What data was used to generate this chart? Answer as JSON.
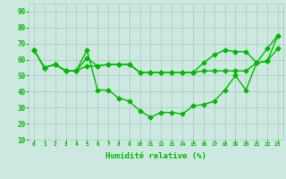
{
  "title": "",
  "xlabel": "Humidité relative (%)",
  "ylabel": "",
  "xlim": [
    -0.5,
    23.5
  ],
  "ylim": [
    10,
    95
  ],
  "yticks": [
    10,
    20,
    30,
    40,
    50,
    60,
    70,
    80,
    90
  ],
  "xticks": [
    0,
    1,
    2,
    3,
    4,
    5,
    6,
    7,
    8,
    9,
    10,
    11,
    12,
    13,
    14,
    15,
    16,
    17,
    18,
    19,
    20,
    21,
    22,
    23
  ],
  "bg_color": "#cce8e0",
  "grid_color": "#aaccbb",
  "line_color": "#00bb00",
  "curves": [
    [
      66,
      55,
      57,
      53,
      53,
      61,
      56,
      57,
      57,
      57,
      52,
      52,
      52,
      52,
      52,
      52,
      53,
      53,
      53,
      53,
      53,
      58,
      59,
      67
    ],
    [
      66,
      55,
      57,
      53,
      53,
      66,
      41,
      41,
      36,
      34,
      28,
      24,
      27,
      27,
      26,
      31,
      32,
      34,
      41,
      50,
      41,
      58,
      67,
      75
    ],
    [
      66,
      55,
      57,
      53,
      53,
      56,
      56,
      57,
      57,
      57,
      52,
      52,
      52,
      52,
      52,
      52,
      58,
      63,
      66,
      65,
      65,
      58,
      59,
      75
    ]
  ],
  "marker": "D",
  "markersize": 2.5,
  "linewidth": 1.0
}
